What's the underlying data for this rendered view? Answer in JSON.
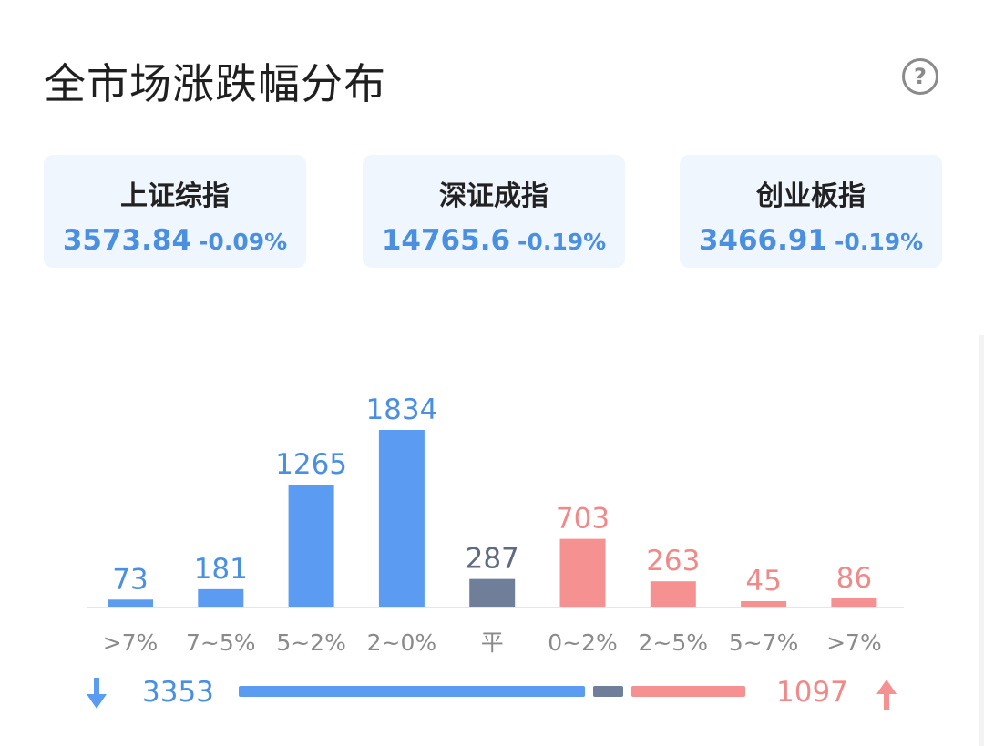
{
  "header": {
    "title": "全市场涨跌幅分布",
    "help_symbol": "?"
  },
  "indices": [
    {
      "name": "上证综指",
      "value": "3573.84",
      "change": "-0.09%"
    },
    {
      "name": "深证成指",
      "value": "14765.6",
      "change": "-0.19%"
    },
    {
      "name": "创业板指",
      "value": "3466.91",
      "change": "-0.19%"
    }
  ],
  "colors": {
    "down": "#5b9cf2",
    "flat": "#6f7e99",
    "up": "#f59191",
    "down_text": "#4a8fe0",
    "up_text": "#f08a8a"
  },
  "chart_data": {
    "type": "bar",
    "title": "",
    "categories": [
      ">7%",
      "7~5%",
      "5~2%",
      "2~0%",
      "平",
      "0~2%",
      "2~5%",
      "5~7%",
      ">7%"
    ],
    "values": [
      73,
      181,
      1265,
      1834,
      287,
      703,
      263,
      45,
      86
    ],
    "groups": [
      "down",
      "down",
      "down",
      "down",
      "flat",
      "up",
      "up",
      "up",
      "up"
    ],
    "ylim": [
      0,
      1834
    ],
    "grid": false,
    "xlabel": "",
    "ylabel": ""
  },
  "summary": {
    "down_count": "3353",
    "up_count": "1097",
    "flat_count": 287
  }
}
